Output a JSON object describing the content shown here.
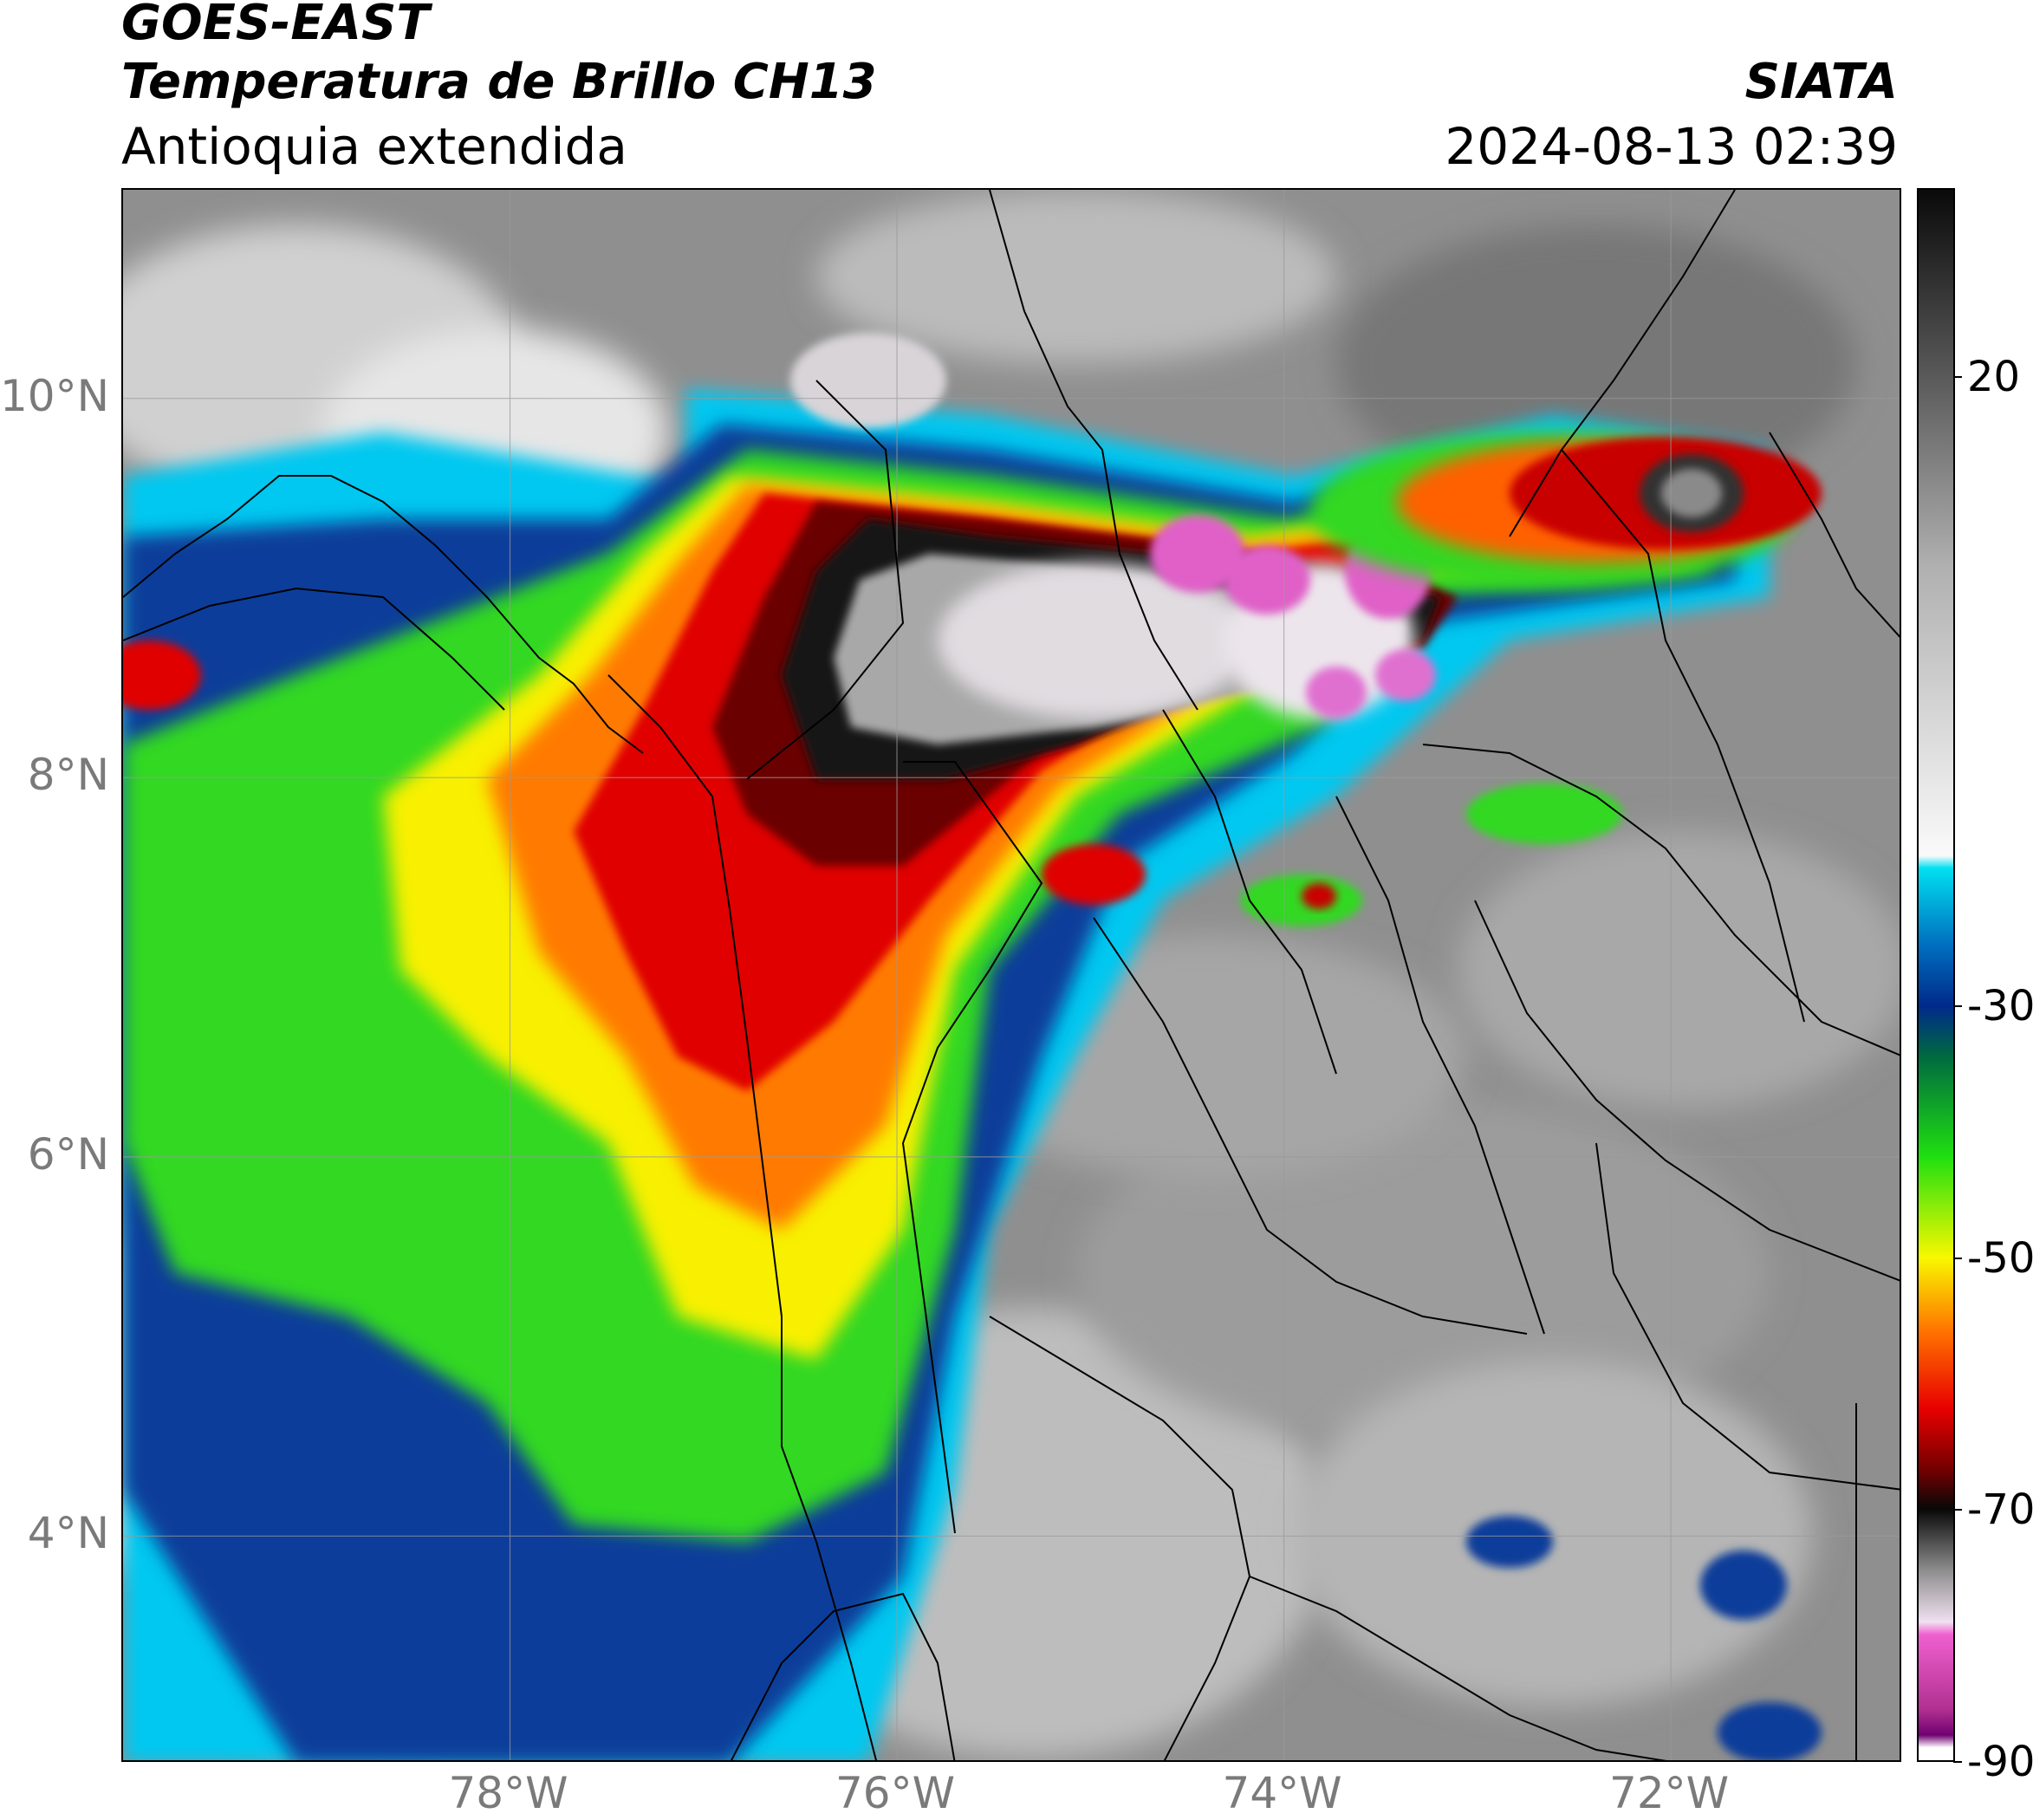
{
  "header": {
    "satellite": "GOES-EAST",
    "product": "Temperatura de Brillo CH13",
    "region": "Antioquia extendida",
    "agency": "SIATA",
    "datetime": "2024-08-13 02:39"
  },
  "map": {
    "extent": {
      "lon_min": -80.0,
      "lon_max": -70.8,
      "lat_min": 2.8,
      "lat_max": 11.1
    },
    "lat_ticks": [
      {
        "value": 10,
        "label": "10°N"
      },
      {
        "value": 8,
        "label": "8°N"
      },
      {
        "value": 6,
        "label": "6°N"
      },
      {
        "value": 4,
        "label": "4°N"
      }
    ],
    "lon_ticks": [
      {
        "value": -78,
        "label": "78°W"
      },
      {
        "value": -76,
        "label": "76°W"
      },
      {
        "value": -74,
        "label": "74°W"
      },
      {
        "value": -72,
        "label": "72°W"
      }
    ],
    "grid": true,
    "background_color": "#8f8f8f"
  },
  "colorbar": {
    "range": [
      -90,
      35
    ],
    "ticks": [
      {
        "value": 20,
        "label": "20"
      },
      {
        "value": -30,
        "label": "-30"
      },
      {
        "value": -50,
        "label": "-50"
      },
      {
        "value": -70,
        "label": "-70"
      },
      {
        "value": -90,
        "label": "-90"
      }
    ],
    "stops": [
      {
        "value": 35,
        "color": "#0a0a0a"
      },
      {
        "value": 20,
        "color": "#5a5a5a"
      },
      {
        "value": 5,
        "color": "#b0b0b0"
      },
      {
        "value": -18,
        "color": "#fafafa"
      },
      {
        "value": -19,
        "color": "#00e0f0"
      },
      {
        "value": -25,
        "color": "#0070c0"
      },
      {
        "value": -30,
        "color": "#002a8a"
      },
      {
        "value": -34,
        "color": "#006a40"
      },
      {
        "value": -42,
        "color": "#20e010"
      },
      {
        "value": -50,
        "color": "#f8f800"
      },
      {
        "value": -56,
        "color": "#ff7000"
      },
      {
        "value": -62,
        "color": "#e80000"
      },
      {
        "value": -67,
        "color": "#700000"
      },
      {
        "value": -70,
        "color": "#080808"
      },
      {
        "value": -75,
        "color": "#909090"
      },
      {
        "value": -79,
        "color": "#f0e0f0"
      },
      {
        "value": -80,
        "color": "#f060d0"
      },
      {
        "value": -86,
        "color": "#b03090"
      },
      {
        "value": -88,
        "color": "#700070"
      },
      {
        "value": -89,
        "color": "#ffffff"
      }
    ]
  }
}
